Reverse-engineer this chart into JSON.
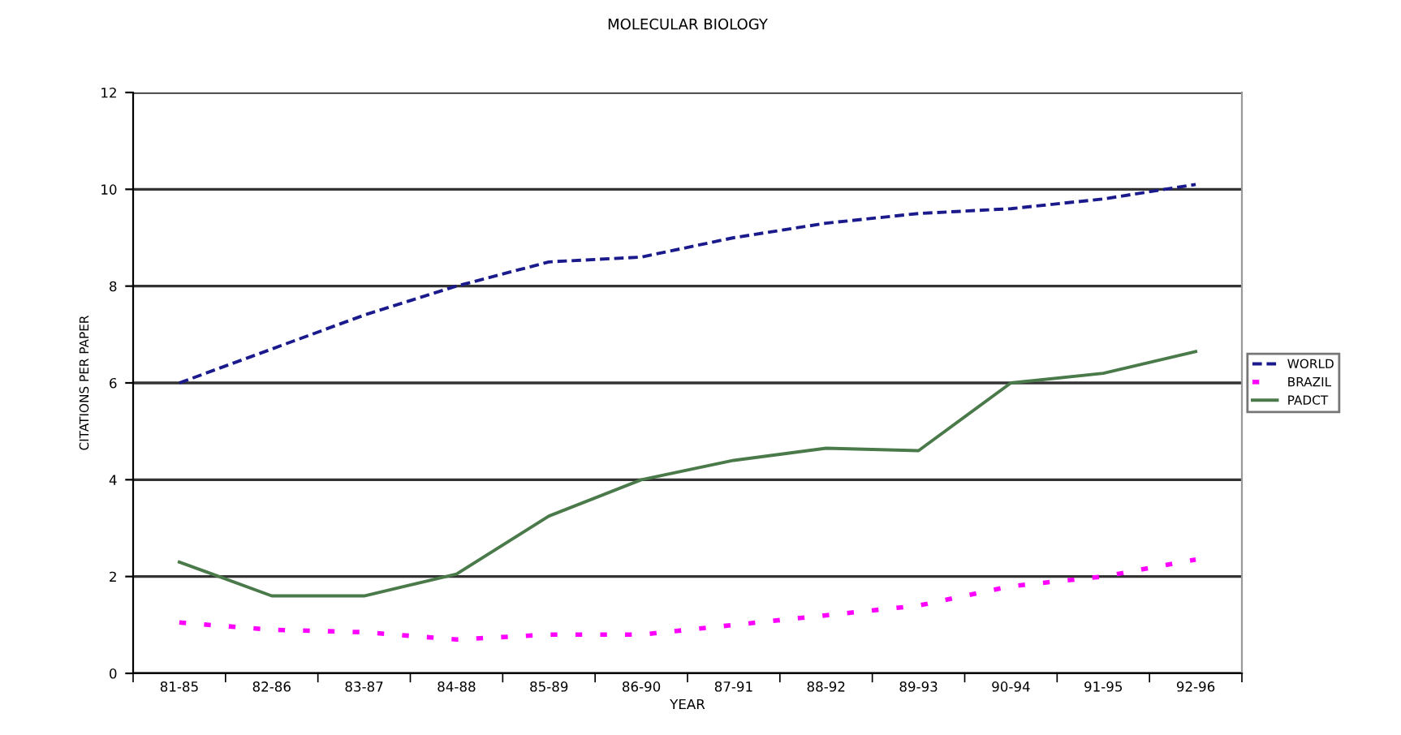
{
  "chart_data": {
    "type": "line",
    "title": "MOLECULAR BIOLOGY",
    "xlabel": "YEAR",
    "ylabel": "CITATIONS PER PAPER",
    "categories": [
      "81-85",
      "82-86",
      "83-87",
      "84-88",
      "85-89",
      "86-90",
      "87-91",
      "88-92",
      "89-93",
      "90-94",
      "91-95",
      "92-96"
    ],
    "ylim": [
      0,
      12
    ],
    "yticks": [
      0,
      2,
      4,
      6,
      8,
      10,
      12
    ],
    "grid": "y",
    "legend": "right",
    "marker": "none",
    "series": [
      {
        "name": "WORLD",
        "color": "#1a1a8c",
        "line_style": "dashed",
        "values": [
          6.0,
          6.7,
          7.4,
          8.0,
          8.5,
          8.6,
          9.0,
          9.3,
          9.5,
          9.6,
          9.8,
          10.1
        ]
      },
      {
        "name": "BRAZIL",
        "color": "#ff00ff",
        "line_style": "dotted",
        "values": [
          1.05,
          0.9,
          0.85,
          0.7,
          0.8,
          0.8,
          1.0,
          1.2,
          1.4,
          1.8,
          2.0,
          2.35
        ]
      },
      {
        "name": "PADCT",
        "color": "#4a7a4a",
        "line_style": "solid",
        "values": [
          2.3,
          1.6,
          1.6,
          2.05,
          3.25,
          4.0,
          4.4,
          4.65,
          4.6,
          6.0,
          6.2,
          6.65
        ]
      }
    ]
  }
}
